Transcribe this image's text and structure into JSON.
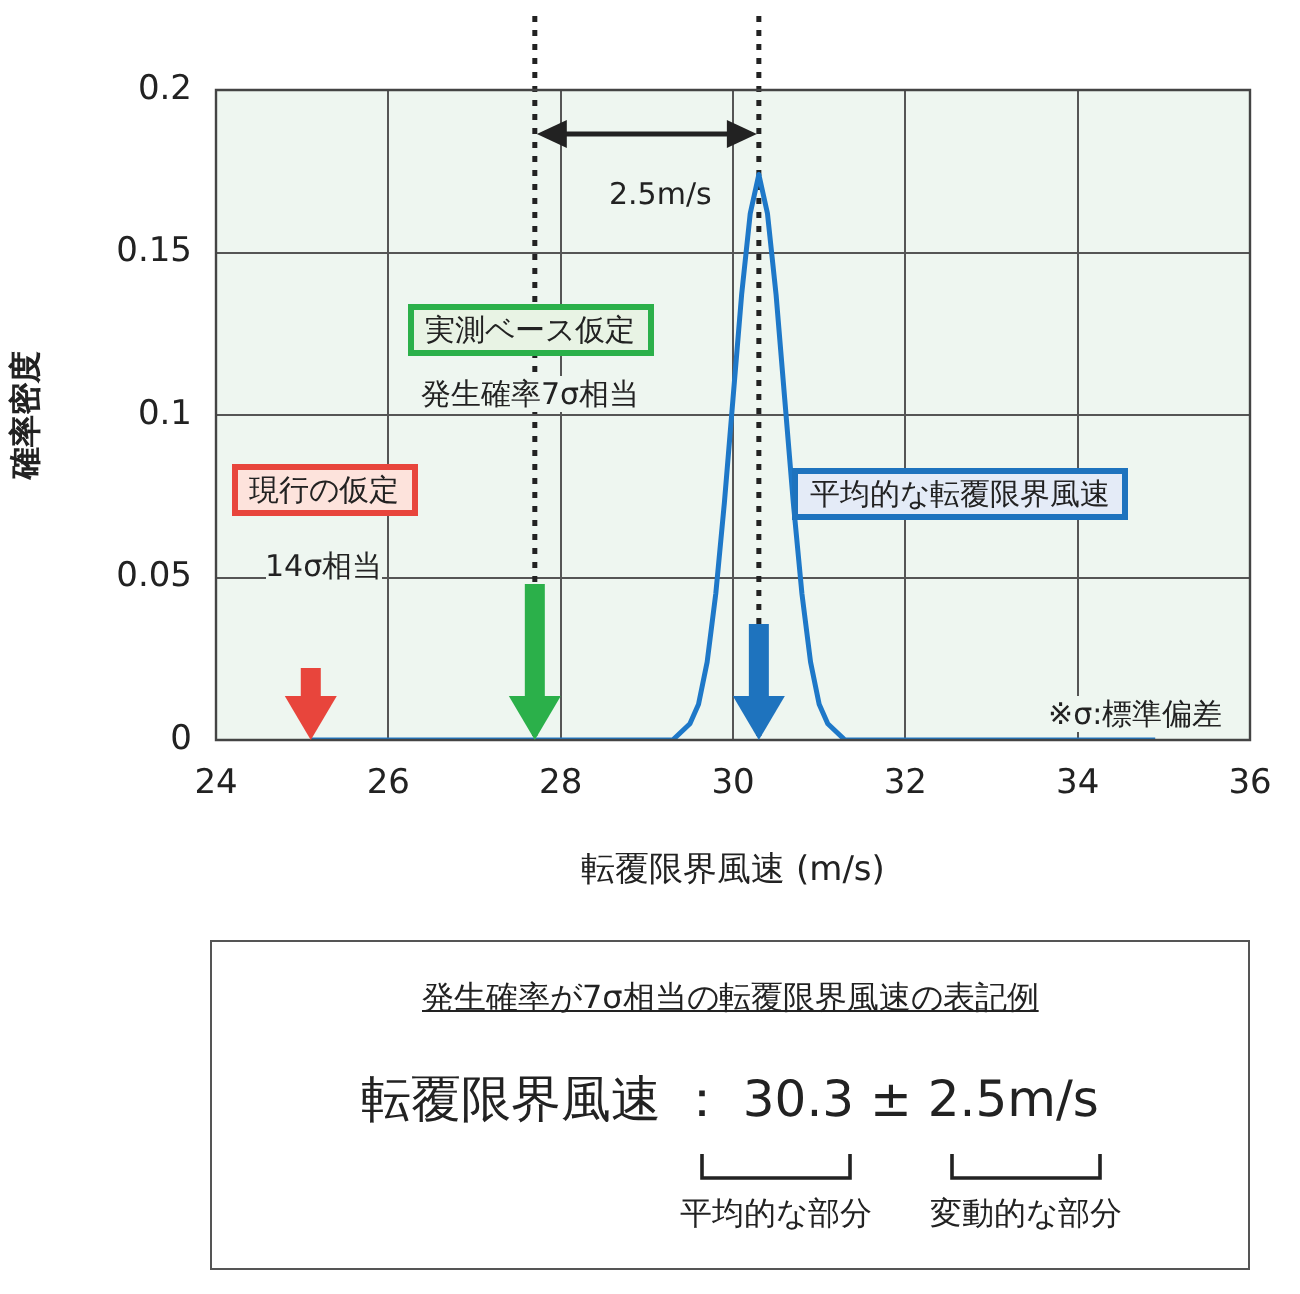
{
  "chart_data": {
    "type": "line",
    "xlabel": "転覆限界風速 (m/s)",
    "ylabel": "確率密度",
    "xlim": [
      24,
      36
    ],
    "xticks": [
      24,
      26,
      28,
      30,
      32,
      34,
      36
    ],
    "ylim": [
      0,
      0.2
    ],
    "yticks": [
      0,
      0.05,
      0.1,
      0.15,
      0.2
    ],
    "grid": true,
    "marker": "none",
    "line_style": "solid",
    "series": [
      {
        "color": "#1e78c8",
        "x": [
          25.1,
          29.0,
          29.3,
          29.5,
          29.6,
          29.7,
          29.8,
          29.9,
          30.0,
          30.1,
          30.2,
          30.3,
          30.4,
          30.5,
          30.6,
          30.7,
          30.8,
          30.9,
          31.0,
          31.1,
          31.3,
          31.6,
          34.9
        ],
        "values": [
          0,
          0,
          0,
          0.005,
          0.011,
          0.024,
          0.045,
          0.073,
          0.105,
          0.137,
          0.162,
          0.174,
          0.162,
          0.137,
          0.105,
          0.073,
          0.045,
          0.024,
          0.011,
          0.005,
          0,
          0,
          0
        ]
      }
    ],
    "ref_lines": [
      {
        "axis": "x",
        "value": 27.7,
        "line_style": "dotted",
        "color": "#222222"
      },
      {
        "axis": "x",
        "value": 30.3,
        "line_style": "dotted",
        "color": "#222222"
      }
    ],
    "annotations": [
      "2.5m/s",
      "実測ベース仮定",
      "発生確率7σ相当",
      "現行の仮定",
      "14σ相当",
      "平均的な転覆限界風速",
      "※σ:標準偏差",
      "発生確率が7σ相当の転覆限界風速の表記例",
      "転覆限界風速 ： 30.3 ± 2.5m/s",
      "平均的な部分",
      "変動的な部分"
    ]
  }
}
